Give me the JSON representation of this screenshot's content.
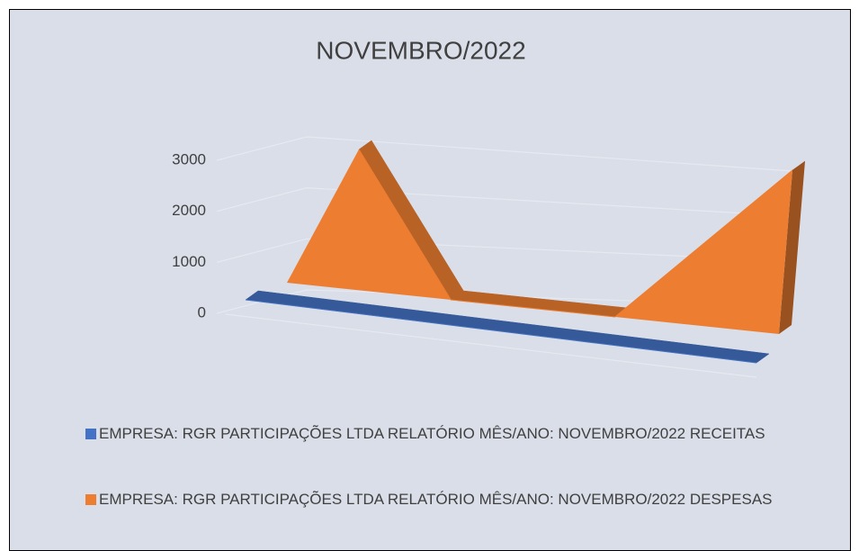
{
  "chart_data": {
    "type": "area",
    "three_d": true,
    "title": "NOVEMBRO/2022",
    "categories": [
      null,
      null,
      null,
      null
    ],
    "series": [
      {
        "name": "EMPRESA: RGR PARTICIPAÇÕES LTDA RELATÓRIO MÊS/ANO: NOVEMBRO/2022 RECEITAS",
        "color": "#4472c4",
        "values": [
          0,
          0,
          0,
          0
        ]
      },
      {
        "name": "EMPRESA: RGR PARTICIPAÇÕES LTDA RELATÓRIO MÊS/ANO: NOVEMBRO/2022 DESPESAS",
        "color": "#ed7d31",
        "values": [
          3000,
          0,
          0,
          3000
        ]
      }
    ],
    "ylim": [
      0,
      3000
    ],
    "yticks": [
      0,
      1000,
      2000,
      3000
    ],
    "grid": true,
    "legend": "bottom"
  }
}
